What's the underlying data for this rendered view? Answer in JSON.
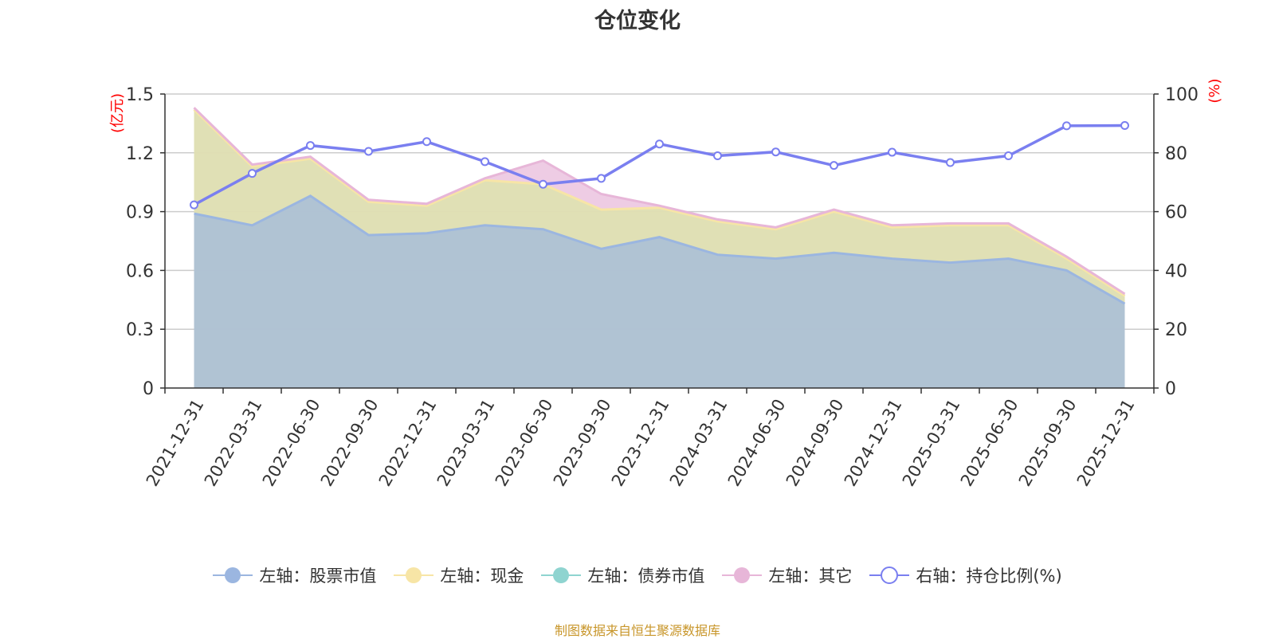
{
  "chart_data": {
    "type": "area",
    "title": "仓位变化",
    "categories": [
      "2021-12-31",
      "2022-03-31",
      "2022-06-30",
      "2022-09-30",
      "2022-12-31",
      "2023-03-31",
      "2023-06-30",
      "2023-09-30",
      "2023-12-31",
      "2024-03-31",
      "2024-06-30",
      "2024-09-30",
      "2024-12-31",
      "2025-03-31",
      "2025-06-30",
      "2025-09-30",
      "2025-12-31"
    ],
    "left_axis": {
      "unit": "(亿元)",
      "ylim": [
        0,
        1.5
      ],
      "ticks": [
        "0",
        "0.3",
        "0.6",
        "0.9",
        "1.2",
        "1.5"
      ]
    },
    "right_axis": {
      "unit": "(%)",
      "ylim": [
        0,
        100
      ],
      "ticks": [
        "0",
        "20",
        "40",
        "60",
        "80",
        "100"
      ]
    },
    "grid": true,
    "legend_position": "bottom",
    "series": [
      {
        "name": "左轴：股票市值",
        "axis": "left",
        "stack": true,
        "color": "#9bb6e0",
        "values": [
          0.89,
          0.83,
          0.98,
          0.78,
          0.79,
          0.83,
          0.81,
          0.71,
          0.77,
          0.68,
          0.66,
          0.69,
          0.66,
          0.64,
          0.66,
          0.6,
          0.43
        ]
      },
      {
        "name": "左轴：现金",
        "axis": "left",
        "stack": true,
        "color": "#f7e5a6",
        "values": [
          0.53,
          0.3,
          0.19,
          0.17,
          0.14,
          0.23,
          0.23,
          0.2,
          0.15,
          0.17,
          0.15,
          0.21,
          0.16,
          0.19,
          0.17,
          0.06,
          0.04
        ]
      },
      {
        "name": "左轴：债券市值",
        "axis": "left",
        "stack": true,
        "color": "#8fd4d0",
        "values": [
          0,
          0,
          0,
          0,
          0,
          0,
          0,
          0,
          0,
          0,
          0,
          0,
          0,
          0,
          0,
          0,
          0
        ]
      },
      {
        "name": "左轴：其它",
        "axis": "left",
        "stack": true,
        "color": "#e7b6d8",
        "values": [
          0.01,
          0.01,
          0.01,
          0.01,
          0.01,
          0.01,
          0.12,
          0.08,
          0.01,
          0.01,
          0.01,
          0.01,
          0.01,
          0.01,
          0.01,
          0.01,
          0.01
        ]
      },
      {
        "name": "右轴：持仓比例(%)",
        "axis": "right",
        "type": "line",
        "color": "#7a7ff0",
        "values": [
          62.3,
          73.0,
          82.5,
          80.5,
          83.8,
          77.0,
          69.3,
          71.3,
          83.0,
          79.0,
          80.3,
          75.7,
          80.2,
          76.7,
          79.0,
          89.2,
          89.3
        ]
      }
    ]
  },
  "source_note": "制图数据来自恒生聚源数据库"
}
